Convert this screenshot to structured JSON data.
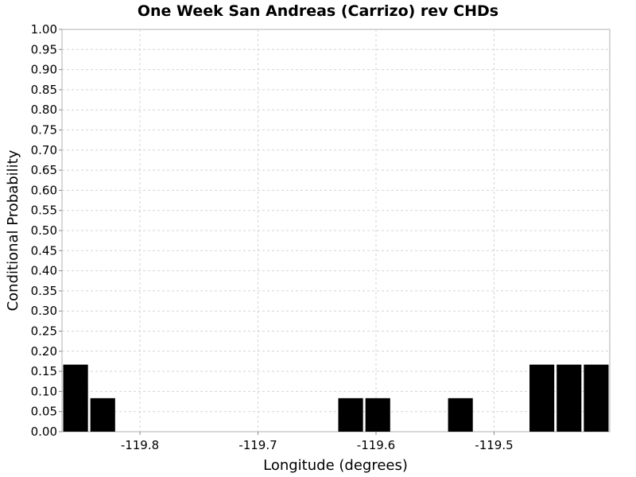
{
  "chart_data": {
    "type": "bar",
    "title": "One Week San Andreas (Carrizo) rev CHDs",
    "xlabel": "Longitude (degrees)",
    "ylabel": "Conditional Probability",
    "xlim": [
      -119.866,
      -119.402
    ],
    "ylim": [
      0,
      1
    ],
    "x_ticks": [
      -119.8,
      -119.7,
      -119.6,
      -119.5
    ],
    "x_tick_labels": [
      "-119.8",
      "-119.7",
      "-119.6",
      "-119.5"
    ],
    "y_ticks": [
      0,
      0.05,
      0.1,
      0.15,
      0.2,
      0.25,
      0.3,
      0.35,
      0.4,
      0.45,
      0.5,
      0.55,
      0.6,
      0.65,
      0.7,
      0.75,
      0.8,
      0.85,
      0.9,
      0.95,
      1.0
    ],
    "y_tick_labels": [
      "0.00",
      "0.05",
      "0.10",
      "0.15",
      "0.20",
      "0.25",
      "0.30",
      "0.35",
      "0.40",
      "0.45",
      "0.50",
      "0.55",
      "0.60",
      "0.65",
      "0.70",
      "0.75",
      "0.80",
      "0.85",
      "0.90",
      "0.95",
      "1.00"
    ],
    "grid": true,
    "bar_color": "#000000",
    "bars": [
      {
        "x0": -119.866,
        "x1": -119.843,
        "y": 0.1667
      },
      {
        "x0": -119.843,
        "x1": -119.82,
        "y": 0.0833
      },
      {
        "x0": -119.633,
        "x1": -119.61,
        "y": 0.0833
      },
      {
        "x0": -119.61,
        "x1": -119.587,
        "y": 0.0833
      },
      {
        "x0": -119.54,
        "x1": -119.517,
        "y": 0.0833
      },
      {
        "x0": -119.471,
        "x1": -119.448,
        "y": 0.1667
      },
      {
        "x0": -119.448,
        "x1": -119.425,
        "y": 0.1667
      },
      {
        "x0": -119.425,
        "x1": -119.402,
        "y": 0.1667
      }
    ]
  }
}
